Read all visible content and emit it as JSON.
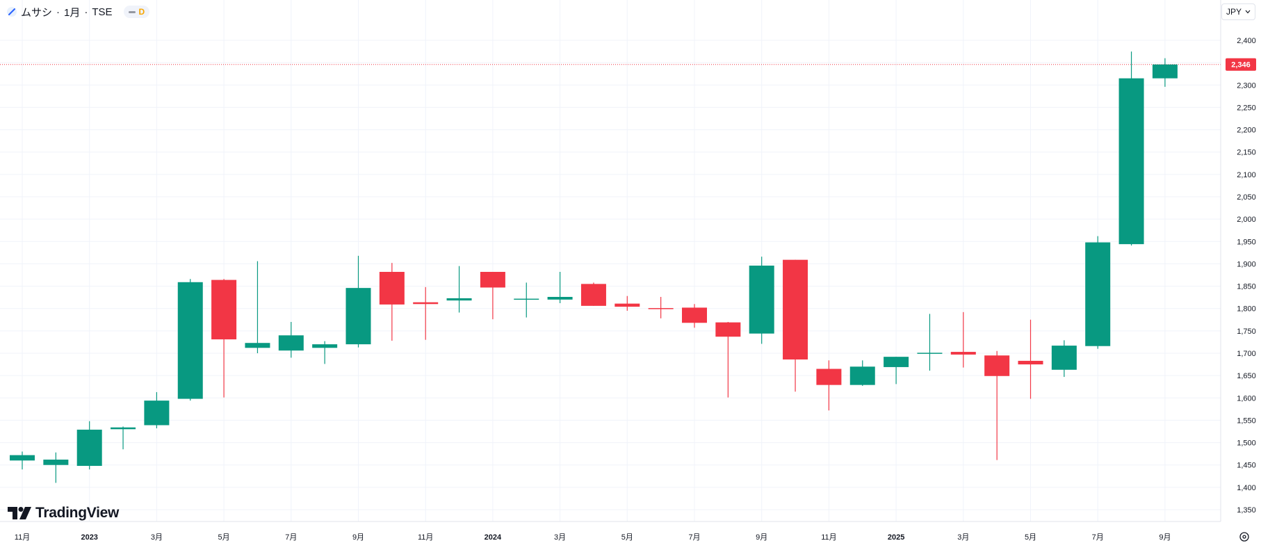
{
  "legend": {
    "symbol": "ムサシ",
    "separator": "·",
    "interval": "1月",
    "exchange": "TSE",
    "interval_badge": "D"
  },
  "currency_button": "JPY",
  "logo_text": "TradingView",
  "colors": {
    "up": "#089981",
    "down": "#f23645",
    "grid": "#f0f3fa",
    "last_price_line": "#f23645",
    "text": "#131722"
  },
  "chart_data": {
    "type": "candlestick",
    "title": "",
    "interval": "1M",
    "last_price": 2346,
    "last_price_label": "2,346",
    "ylim": [
      1320,
      2430
    ],
    "y_ticks": [
      1350,
      1400,
      1450,
      1500,
      1550,
      1600,
      1650,
      1700,
      1750,
      1800,
      1850,
      1900,
      1950,
      2000,
      2050,
      2100,
      2150,
      2200,
      2250,
      2300,
      2350,
      2400
    ],
    "x_tick_labels": [
      {
        "label": "11月",
        "index": 0,
        "bold": false
      },
      {
        "label": "2023",
        "index": 2,
        "bold": true
      },
      {
        "label": "3月",
        "index": 4,
        "bold": false
      },
      {
        "label": "5月",
        "index": 6,
        "bold": false
      },
      {
        "label": "7月",
        "index": 8,
        "bold": false
      },
      {
        "label": "9月",
        "index": 10,
        "bold": false
      },
      {
        "label": "11月",
        "index": 12,
        "bold": false
      },
      {
        "label": "2024",
        "index": 14,
        "bold": true
      },
      {
        "label": "3月",
        "index": 16,
        "bold": false
      },
      {
        "label": "5月",
        "index": 18,
        "bold": false
      },
      {
        "label": "7月",
        "index": 20,
        "bold": false
      },
      {
        "label": "9月",
        "index": 22,
        "bold": false
      },
      {
        "label": "11月",
        "index": 24,
        "bold": false
      },
      {
        "label": "2025",
        "index": 26,
        "bold": true
      },
      {
        "label": "3月",
        "index": 28,
        "bold": false
      },
      {
        "label": "5月",
        "index": 30,
        "bold": false
      },
      {
        "label": "7月",
        "index": 32,
        "bold": false
      },
      {
        "label": "9月",
        "index": 34,
        "bold": false
      }
    ],
    "candles": [
      {
        "period": "2022-11",
        "open": 1460,
        "high": 1480,
        "low": 1440,
        "close": 1472
      },
      {
        "period": "2022-12",
        "open": 1450,
        "high": 1478,
        "low": 1410,
        "close": 1462
      },
      {
        "period": "2023-01",
        "open": 1448,
        "high": 1548,
        "low": 1440,
        "close": 1529
      },
      {
        "period": "2023-02",
        "open": 1530,
        "high": 1536,
        "low": 1485,
        "close": 1534
      },
      {
        "period": "2023-03",
        "open": 1539,
        "high": 1613,
        "low": 1532,
        "close": 1594
      },
      {
        "period": "2023-04",
        "open": 1598,
        "high": 1866,
        "low": 1594,
        "close": 1859
      },
      {
        "period": "2023-05",
        "open": 1864,
        "high": 1866,
        "low": 1601,
        "close": 1731
      },
      {
        "period": "2023-06",
        "open": 1712,
        "high": 1906,
        "low": 1700,
        "close": 1723
      },
      {
        "period": "2023-07",
        "open": 1706,
        "high": 1770,
        "low": 1690,
        "close": 1740
      },
      {
        "period": "2023-08",
        "open": 1712,
        "high": 1727,
        "low": 1676,
        "close": 1720
      },
      {
        "period": "2023-09",
        "open": 1720,
        "high": 1918,
        "low": 1713,
        "close": 1846
      },
      {
        "period": "2023-10",
        "open": 1882,
        "high": 1902,
        "low": 1728,
        "close": 1809
      },
      {
        "period": "2023-11",
        "open": 1814,
        "high": 1848,
        "low": 1730,
        "close": 1810
      },
      {
        "period": "2023-12",
        "open": 1818,
        "high": 1895,
        "low": 1791,
        "close": 1823
      },
      {
        "period": "2024-01",
        "open": 1882,
        "high": 1882,
        "low": 1776,
        "close": 1847
      },
      {
        "period": "2024-02",
        "open": 1821,
        "high": 1858,
        "low": 1780,
        "close": 1822
      },
      {
        "period": "2024-03",
        "open": 1820,
        "high": 1882,
        "low": 1812,
        "close": 1826
      },
      {
        "period": "2024-04",
        "open": 1855,
        "high": 1858,
        "low": 1806,
        "close": 1806
      },
      {
        "period": "2024-05",
        "open": 1811,
        "high": 1828,
        "low": 1795,
        "close": 1804
      },
      {
        "period": "2024-06",
        "open": 1801,
        "high": 1826,
        "low": 1778,
        "close": 1800
      },
      {
        "period": "2024-07",
        "open": 1802,
        "high": 1810,
        "low": 1757,
        "close": 1768
      },
      {
        "period": "2024-08",
        "open": 1769,
        "high": 1770,
        "low": 1601,
        "close": 1737
      },
      {
        "period": "2024-09",
        "open": 1744,
        "high": 1916,
        "low": 1721,
        "close": 1896
      },
      {
        "period": "2024-10",
        "open": 1909,
        "high": 1909,
        "low": 1614,
        "close": 1686
      },
      {
        "period": "2024-11",
        "open": 1665,
        "high": 1684,
        "low": 1572,
        "close": 1629
      },
      {
        "period": "2024-12",
        "open": 1629,
        "high": 1684,
        "low": 1627,
        "close": 1670
      },
      {
        "period": "2025-01",
        "open": 1669,
        "high": 1692,
        "low": 1631,
        "close": 1692
      },
      {
        "period": "2025-02",
        "open": 1700,
        "high": 1788,
        "low": 1661,
        "close": 1701
      },
      {
        "period": "2025-03",
        "open": 1703,
        "high": 1792,
        "low": 1668,
        "close": 1697
      },
      {
        "period": "2025-04",
        "open": 1695,
        "high": 1705,
        "low": 1461,
        "close": 1649
      },
      {
        "period": "2025-05",
        "open": 1683,
        "high": 1775,
        "low": 1598,
        "close": 1675
      },
      {
        "period": "2025-06",
        "open": 1663,
        "high": 1729,
        "low": 1647,
        "close": 1717
      },
      {
        "period": "2025-07",
        "open": 1716,
        "high": 1962,
        "low": 1710,
        "close": 1948
      },
      {
        "period": "2025-08",
        "open": 1944,
        "high": 2375,
        "low": 1941,
        "close": 2315
      },
      {
        "period": "2025-09",
        "open": 2315,
        "high": 2360,
        "low": 2296,
        "close": 2346
      }
    ]
  }
}
